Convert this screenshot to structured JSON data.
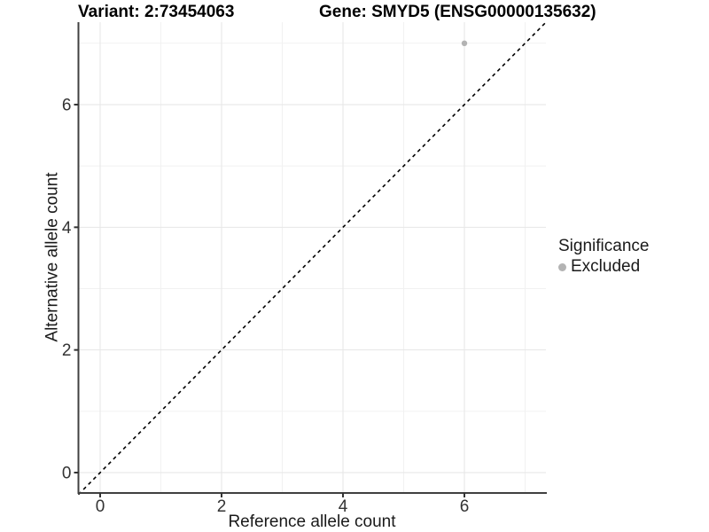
{
  "figure": {
    "title_variant": "Variant: 2:73454063",
    "title_gene": "Gene: SMYD5 (ENSG00000135632)"
  },
  "axes": {
    "x_label": "Reference allele count",
    "y_label": "Alternative allele count"
  },
  "legend": {
    "title": "Significance",
    "items": [
      {
        "label": "Excluded",
        "color": "#b3b3b3",
        "marker": "circle-icon"
      }
    ]
  },
  "chart_data": {
    "type": "scatter",
    "title": "Variant: 2:73454063 | Gene: SMYD5 (ENSG00000135632)",
    "xlabel": "Reference allele count",
    "ylabel": "Alternative allele count",
    "xlim": [
      -0.37,
      7.35
    ],
    "ylim": [
      -0.34,
      7.34
    ],
    "x_ticks": [
      0,
      2,
      4,
      6
    ],
    "y_ticks": [
      0,
      2,
      4,
      6
    ],
    "grid_units": [
      0,
      1,
      2,
      3,
      4,
      5,
      6,
      7
    ],
    "grid": true,
    "legend_position": "right",
    "series": [
      {
        "name": "Excluded",
        "color": "#b3b3b3",
        "points": [
          {
            "x": 6,
            "y": 7
          }
        ]
      }
    ],
    "reference_line": {
      "type": "identity",
      "slope": 1,
      "intercept": 0,
      "style": "dashed",
      "color": "#000000"
    }
  },
  "colors": {
    "axis_line": "#404040",
    "tick_mark": "#333333",
    "tick_text": "#333333",
    "grid_major": "#e6e6e6",
    "grid_minor": "#f1f1f1",
    "point_fill": "#b3b3b3",
    "background": "#ffffff"
  }
}
